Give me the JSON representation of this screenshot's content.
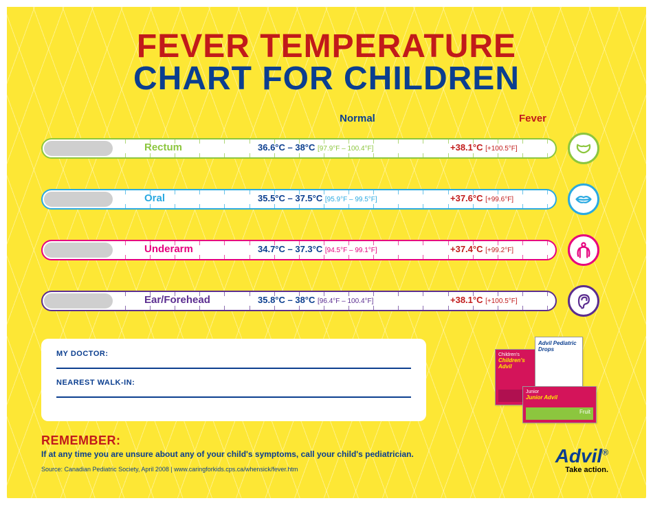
{
  "colors": {
    "bg": "#fde735",
    "title_red": "#c11a1a",
    "title_blue": "#0b3e8f",
    "fever_red": "#c11a1a"
  },
  "title": {
    "line1": "FEVER TEMPERATURE",
    "line2": "CHART FOR CHILDREN"
  },
  "column_headers": {
    "normal": "Normal",
    "fever": "Fever"
  },
  "rows": [
    {
      "site": "Rectum",
      "normal_c": "36.6°C – 38°C",
      "normal_f": "[97.9°F – 100.4°F]",
      "fever_c": "+38.1°C",
      "fever_f": "[+100.5°F]",
      "color": "#8cc63e",
      "icon": "diaper"
    },
    {
      "site": "Oral",
      "normal_c": "35.5°C – 37.5°C",
      "normal_f": "[95.9°F – 99.5°F]",
      "fever_c": "+37.6°C",
      "fever_f": "[+99.6°F]",
      "color": "#29a9e1",
      "icon": "lips"
    },
    {
      "site": "Underarm",
      "normal_c": "34.7°C – 37.3°C",
      "normal_f": "[94.5°F – 99.1°F]",
      "fever_c": "+37.4°C",
      "fever_f": "[+99.2°F]",
      "color": "#e6007e",
      "icon": "arms"
    },
    {
      "site": "Ear/Forehead",
      "normal_c": "35.8°C – 38°C",
      "normal_f": "[96.4°F – 100.4°F]",
      "fever_c": "+38.1°C",
      "fever_f": "[+100.5°F]",
      "color": "#5b2d90",
      "icon": "ear"
    }
  ],
  "info": {
    "doctor_label": "MY DOCTOR:",
    "walkin_label": "NEAREST WALK-IN:"
  },
  "remember": {
    "heading": "REMEMBER:",
    "text": "If at any time you are unsure about any of your child's symptoms, call your child's pediatrician."
  },
  "source": "Source: Canadian Pediatric Society, April 2008  |  www.caringforkids.cps.ca/whensick/fever.htm",
  "brand": {
    "name": "Advil",
    "tagline": "Take action."
  },
  "products": [
    {
      "name": "Children's Advil",
      "bg": "#d4145a",
      "accent": "#ffeb00"
    },
    {
      "name": "Advil Pediatric Drops",
      "bg": "#ffffff",
      "accent": "#0b3e8f"
    },
    {
      "name": "Junior Advil",
      "bg": "#d4145a",
      "accent": "#8cc63e"
    }
  ]
}
